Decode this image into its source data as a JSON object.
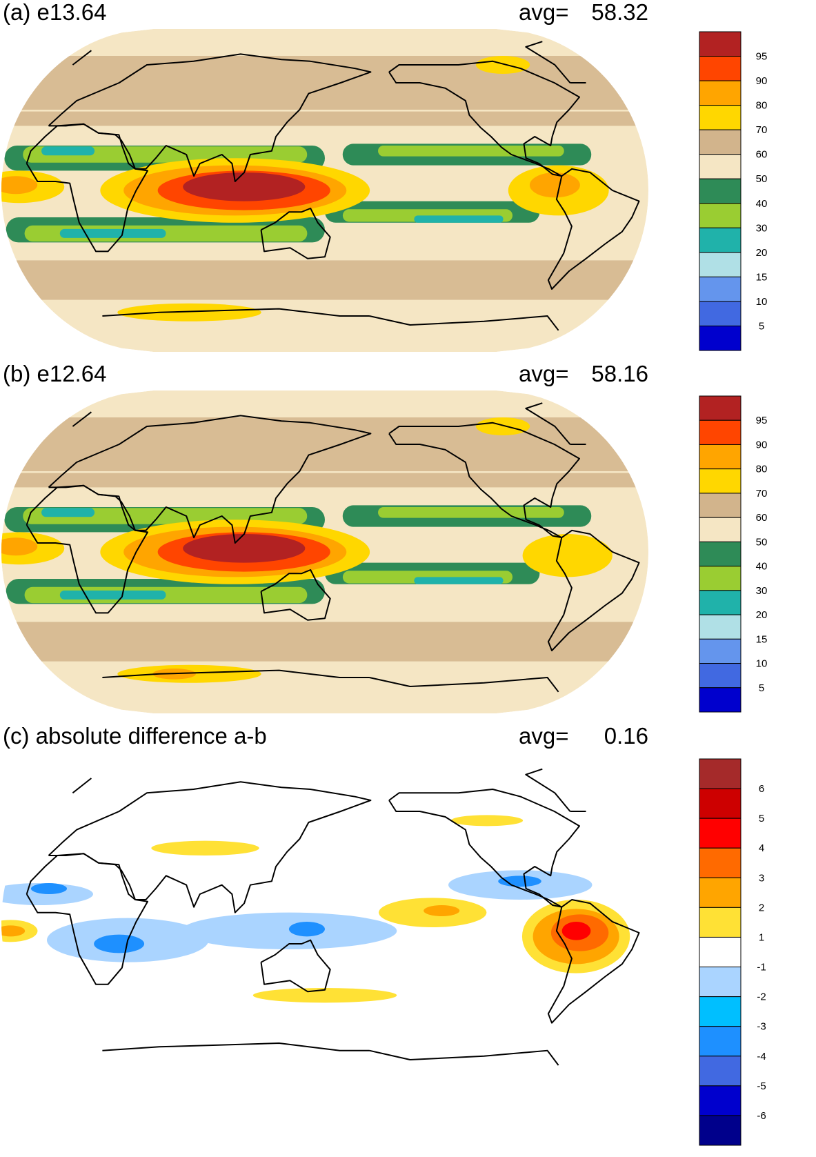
{
  "panels": [
    {
      "id": "a",
      "title": "(a) e13.64",
      "avg_label": "avg=",
      "avg_value": "58.32",
      "colorbar": {
        "labels": [
          "95",
          "90",
          "80",
          "70",
          "60",
          "50",
          "40",
          "30",
          "20",
          "15",
          "10",
          "5"
        ],
        "colors": [
          "#b22222",
          "#ff4500",
          "#ffa500",
          "#ffd700",
          "#d2b48c",
          "#f5e6c4",
          "#2e8b57",
          "#9acd32",
          "#20b2aa",
          "#b0e0e6",
          "#6495ed",
          "#4169e1",
          "#0000cd"
        ]
      },
      "features": [
        {
          "type": "band",
          "color": "#2e8b57",
          "lat": 18,
          "lon0": -30,
          "lon1": 150,
          "h": 14
        },
        {
          "type": "band",
          "color": "#9acd32",
          "lat": 20,
          "lon0": -20,
          "lon1": 140,
          "h": 9
        },
        {
          "type": "band",
          "color": "#20b2aa",
          "lat": 22,
          "lon0": -10,
          "lon1": 20,
          "h": 5
        },
        {
          "type": "band",
          "color": "#2e8b57",
          "lat": -22,
          "lon0": -30,
          "lon1": 150,
          "h": 14
        },
        {
          "type": "band",
          "color": "#9acd32",
          "lat": -24,
          "lon0": -20,
          "lon1": 140,
          "h": 9
        },
        {
          "type": "band",
          "color": "#20b2aa",
          "lat": -24,
          "lon0": 0,
          "lon1": 60,
          "h": 5
        },
        {
          "type": "band",
          "color": "#2e8b57",
          "lat": -12,
          "lon0": 150,
          "lon1": 270,
          "h": 12
        },
        {
          "type": "band",
          "color": "#9acd32",
          "lat": -14,
          "lon0": 160,
          "lon1": 255,
          "h": 7
        },
        {
          "type": "band",
          "color": "#20b2aa",
          "lat": -16,
          "lon0": 200,
          "lon1": 250,
          "h": 4
        },
        {
          "type": "band",
          "color": "#2e8b57",
          "lat": 20,
          "lon0": 160,
          "lon1": 300,
          "h": 12
        },
        {
          "type": "band",
          "color": "#9acd32",
          "lat": 22,
          "lon0": 180,
          "lon1": 285,
          "h": 6
        },
        {
          "type": "blob",
          "color": "#ffd700",
          "lat": 0,
          "lon": 100,
          "rx": 75,
          "ry": 18
        },
        {
          "type": "blob",
          "color": "#ffa500",
          "lat": 0,
          "lon": 100,
          "rx": 62,
          "ry": 14
        },
        {
          "type": "blob",
          "color": "#ff4500",
          "lat": 0,
          "lon": 105,
          "rx": 48,
          "ry": 11
        },
        {
          "type": "blob",
          "color": "#b22222",
          "lat": 2,
          "lon": 105,
          "rx": 34,
          "ry": 8
        },
        {
          "type": "blob",
          "color": "#ffd700",
          "lat": 0,
          "lon": 280,
          "rx": 28,
          "ry": 14
        },
        {
          "type": "blob",
          "color": "#ffa500",
          "lat": 3,
          "lon": 278,
          "rx": 14,
          "ry": 7
        },
        {
          "type": "blob",
          "color": "#ffd700",
          "lat": 2,
          "lon": -20,
          "rx": 25,
          "ry": 9
        },
        {
          "type": "blob",
          "color": "#ffa500",
          "lat": 3,
          "lon": -22,
          "rx": 12,
          "ry": 5
        },
        {
          "type": "blob",
          "color": "#ffd700",
          "lat": -68,
          "lon": 60,
          "rx": 40,
          "ry": 5
        },
        {
          "type": "blob",
          "color": "#ffd700",
          "lat": 70,
          "lon": 270,
          "rx": 15,
          "ry": 5
        }
      ]
    },
    {
      "id": "b",
      "title": "(b) e12.64",
      "avg_label": "avg=",
      "avg_value": "58.16",
      "colorbar": {
        "labels": [
          "95",
          "90",
          "80",
          "70",
          "60",
          "50",
          "40",
          "30",
          "20",
          "15",
          "10",
          "5"
        ],
        "colors": [
          "#b22222",
          "#ff4500",
          "#ffa500",
          "#ffd700",
          "#d2b48c",
          "#f5e6c4",
          "#2e8b57",
          "#9acd32",
          "#20b2aa",
          "#b0e0e6",
          "#6495ed",
          "#4169e1",
          "#0000cd"
        ]
      },
      "features": [
        {
          "type": "band",
          "color": "#2e8b57",
          "lat": 18,
          "lon0": -30,
          "lon1": 150,
          "h": 14
        },
        {
          "type": "band",
          "color": "#9acd32",
          "lat": 20,
          "lon0": -20,
          "lon1": 140,
          "h": 9
        },
        {
          "type": "band",
          "color": "#20b2aa",
          "lat": 22,
          "lon0": -10,
          "lon1": 20,
          "h": 5
        },
        {
          "type": "band",
          "color": "#2e8b57",
          "lat": -22,
          "lon0": -30,
          "lon1": 150,
          "h": 14
        },
        {
          "type": "band",
          "color": "#9acd32",
          "lat": -24,
          "lon0": -20,
          "lon1": 140,
          "h": 9
        },
        {
          "type": "band",
          "color": "#20b2aa",
          "lat": -24,
          "lon0": 0,
          "lon1": 60,
          "h": 5
        },
        {
          "type": "band",
          "color": "#2e8b57",
          "lat": -12,
          "lon0": 150,
          "lon1": 270,
          "h": 12
        },
        {
          "type": "band",
          "color": "#9acd32",
          "lat": -14,
          "lon0": 160,
          "lon1": 255,
          "h": 7
        },
        {
          "type": "band",
          "color": "#20b2aa",
          "lat": -16,
          "lon0": 200,
          "lon1": 250,
          "h": 4
        },
        {
          "type": "band",
          "color": "#2e8b57",
          "lat": 20,
          "lon0": 160,
          "lon1": 300,
          "h": 12
        },
        {
          "type": "band",
          "color": "#9acd32",
          "lat": 22,
          "lon0": 180,
          "lon1": 285,
          "h": 6
        },
        {
          "type": "blob",
          "color": "#ffd700",
          "lat": 0,
          "lon": 100,
          "rx": 75,
          "ry": 18
        },
        {
          "type": "blob",
          "color": "#ffa500",
          "lat": 0,
          "lon": 100,
          "rx": 62,
          "ry": 14
        },
        {
          "type": "blob",
          "color": "#ff4500",
          "lat": 0,
          "lon": 105,
          "rx": 48,
          "ry": 11
        },
        {
          "type": "blob",
          "color": "#b22222",
          "lat": 2,
          "lon": 105,
          "rx": 34,
          "ry": 8
        },
        {
          "type": "blob",
          "color": "#ffd700",
          "lat": -2,
          "lon": 285,
          "rx": 25,
          "ry": 12
        },
        {
          "type": "blob",
          "color": "#ffd700",
          "lat": 2,
          "lon": -20,
          "rx": 25,
          "ry": 9
        },
        {
          "type": "blob",
          "color": "#ffa500",
          "lat": 3,
          "lon": -22,
          "rx": 12,
          "ry": 5
        },
        {
          "type": "blob",
          "color": "#ffd700",
          "lat": -68,
          "lon": 60,
          "rx": 40,
          "ry": 5
        },
        {
          "type": "blob",
          "color": "#ffa500",
          "lat": -68,
          "lon": 50,
          "rx": 12,
          "ry": 3
        },
        {
          "type": "blob",
          "color": "#ffd700",
          "lat": 70,
          "lon": 270,
          "rx": 15,
          "ry": 5
        }
      ]
    },
    {
      "id": "c",
      "title": "(c) absolute difference a-b",
      "avg_label": "avg=",
      "avg_value": "0.16",
      "colorbar": {
        "labels": [
          "6",
          "5",
          "4",
          "3",
          "2",
          "1",
          "-1",
          "-2",
          "-3",
          "-4",
          "-5",
          "-6"
        ],
        "colors": [
          "#a52a2a",
          "#cd0000",
          "#ff0000",
          "#ff6a00",
          "#ffa500",
          "#ffe135",
          "#ffffff",
          "#aad4ff",
          "#00bfff",
          "#1e90ff",
          "#4169e1",
          "#0000cd",
          "#00008b"
        ]
      },
      "features": [
        {
          "type": "blob",
          "color": "#aad4ff",
          "lat": 15,
          "lon": -10,
          "rx": 30,
          "ry": 6
        },
        {
          "type": "blob",
          "color": "#1e90ff",
          "lat": 18,
          "lon": -5,
          "rx": 10,
          "ry": 3
        },
        {
          "type": "blob",
          "color": "#aad4ff",
          "lat": -10,
          "lon": 40,
          "rx": 45,
          "ry": 12
        },
        {
          "type": "blob",
          "color": "#1e90ff",
          "lat": -12,
          "lon": 35,
          "rx": 14,
          "ry": 5
        },
        {
          "type": "blob",
          "color": "#aad4ff",
          "lat": -5,
          "lon": 130,
          "rx": 60,
          "ry": 10
        },
        {
          "type": "blob",
          "color": "#1e90ff",
          "lat": -4,
          "lon": 140,
          "rx": 10,
          "ry": 4
        },
        {
          "type": "blob",
          "color": "#aad4ff",
          "lat": 20,
          "lon": 260,
          "rx": 40,
          "ry": 8
        },
        {
          "type": "blob",
          "color": "#1e90ff",
          "lat": 22,
          "lon": 260,
          "rx": 12,
          "ry": 3
        },
        {
          "type": "blob",
          "color": "#ffe135",
          "lat": 5,
          "lon": 210,
          "rx": 30,
          "ry": 8
        },
        {
          "type": "blob",
          "color": "#ffa500",
          "lat": 6,
          "lon": 215,
          "rx": 10,
          "ry": 3
        },
        {
          "type": "blob",
          "color": "#ffe135",
          "lat": -8,
          "lon": 290,
          "rx": 30,
          "ry": 20
        },
        {
          "type": "blob",
          "color": "#ffa500",
          "lat": -8,
          "lon": 290,
          "rx": 24,
          "ry": 15
        },
        {
          "type": "blob",
          "color": "#ff6a00",
          "lat": -6,
          "lon": 292,
          "rx": 16,
          "ry": 10
        },
        {
          "type": "blob",
          "color": "#ff0000",
          "lat": -5,
          "lon": 290,
          "rx": 8,
          "ry": 5
        },
        {
          "type": "blob",
          "color": "#ffe135",
          "lat": -5,
          "lon": -25,
          "rx": 15,
          "ry": 6
        },
        {
          "type": "blob",
          "color": "#ffa500",
          "lat": -5,
          "lon": -25,
          "rx": 8,
          "ry": 3
        },
        {
          "type": "blob",
          "color": "#ffe135",
          "lat": 40,
          "lon": 80,
          "rx": 30,
          "ry": 4
        },
        {
          "type": "blob",
          "color": "#ffe135",
          "lat": -40,
          "lon": 150,
          "rx": 40,
          "ry": 4
        },
        {
          "type": "blob",
          "color": "#ffe135",
          "lat": 55,
          "lon": 250,
          "rx": 20,
          "ry": 3
        }
      ]
    }
  ]
}
